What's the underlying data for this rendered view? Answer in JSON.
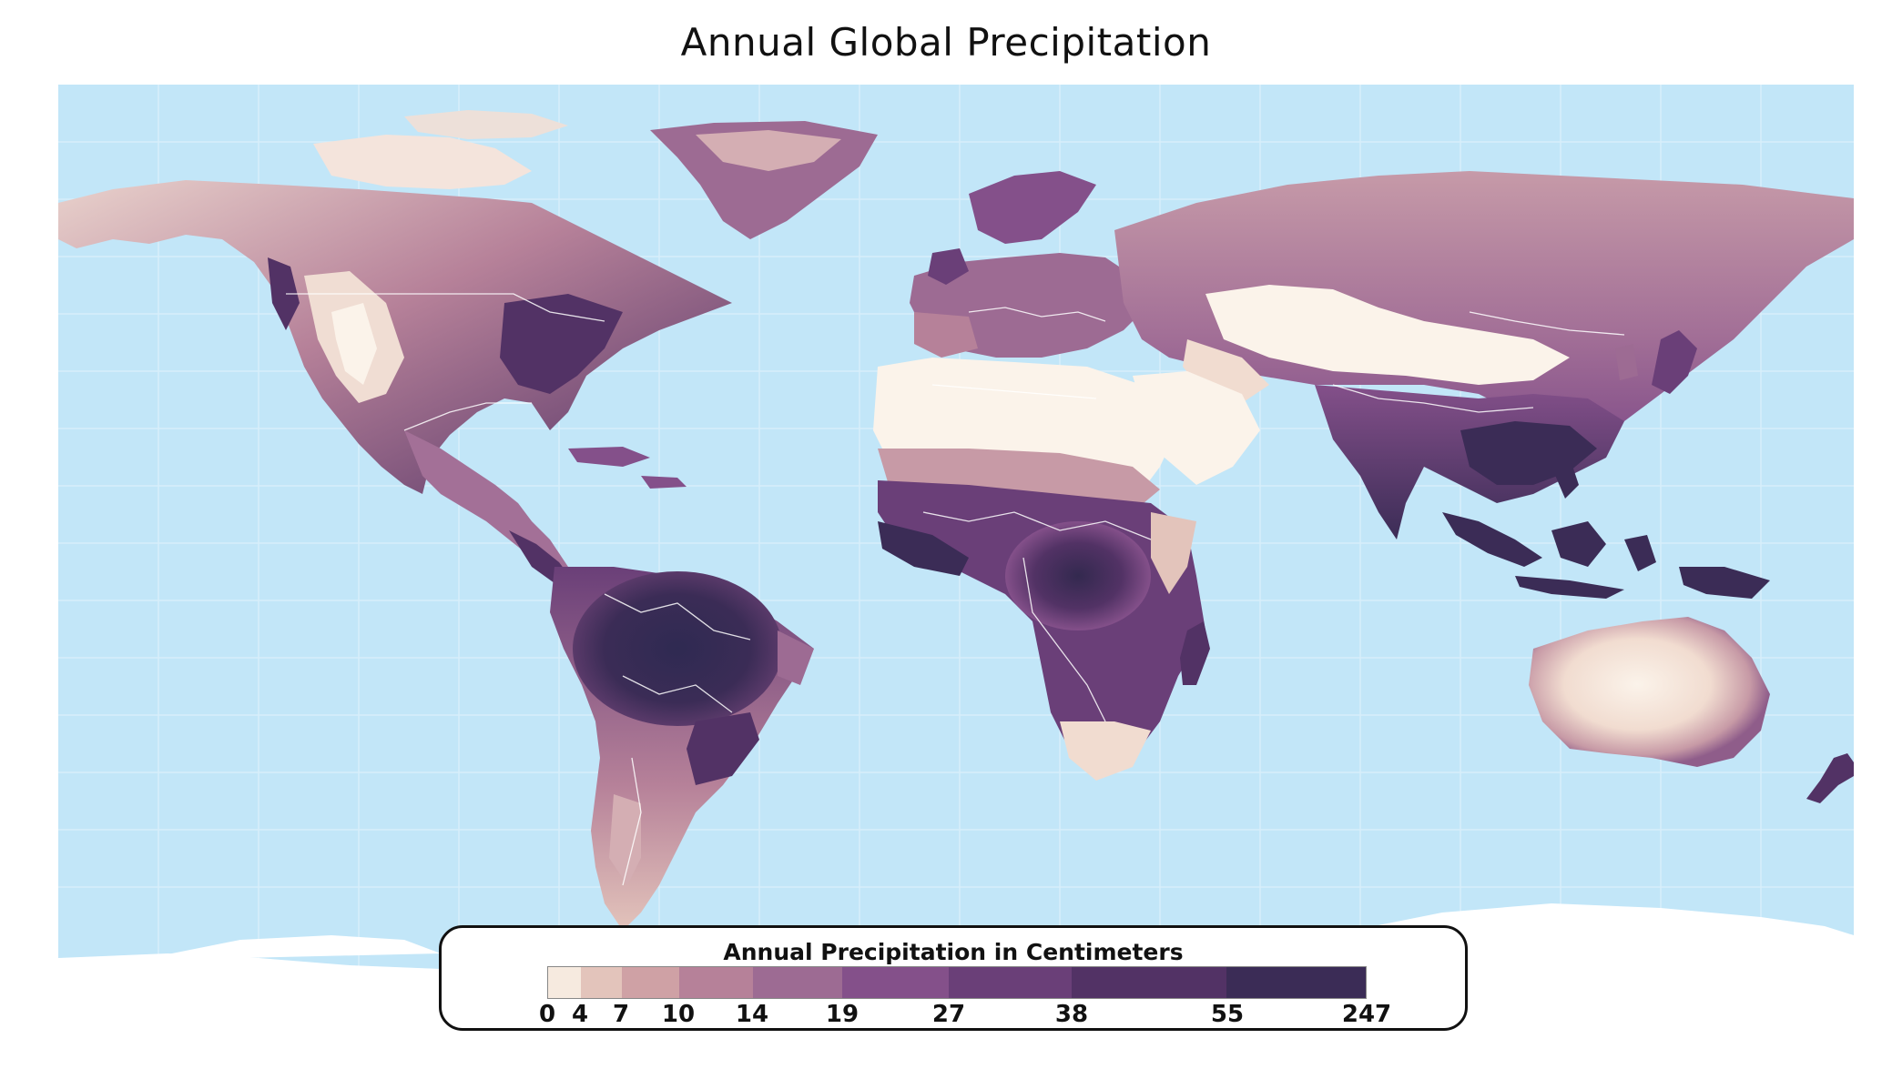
{
  "title": "Annual Global Precipitation",
  "legend": {
    "title": "Annual Precipitation in Centimeters",
    "ticks": [
      "0",
      "4",
      "7",
      "10",
      "14",
      "19",
      "27",
      "38",
      "55",
      "247"
    ],
    "colors": [
      "#f6eadf",
      "#e3c4bb",
      "#cfa1a5",
      "#b68199",
      "#9d6b93",
      "#84508a",
      "#6a3f78",
      "#523265",
      "#3b2c56"
    ]
  },
  "colors": {
    "ocean": "#c2e6f8",
    "ice": "#ffffff",
    "grid": "#d8eefa",
    "border": "#ffffff"
  }
}
